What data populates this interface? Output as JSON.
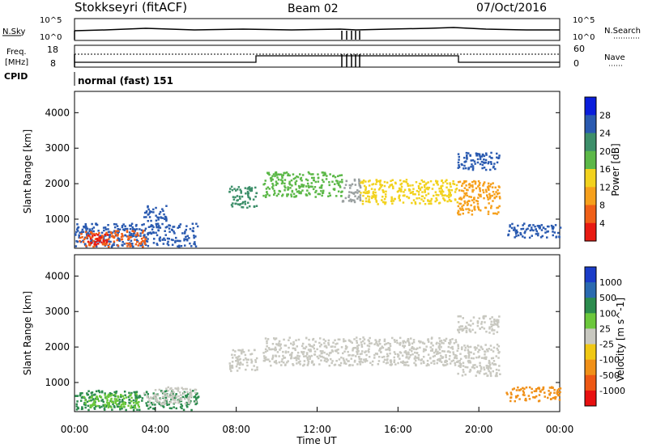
{
  "header": {
    "station": "Stokkseyri (fitACF)",
    "beam": "Beam 02",
    "date": "07/Oct/2016"
  },
  "sky_panel": {
    "left_label": "N.Sky",
    "right_label": "N.Search",
    "left_ticks": [
      "10^5",
      "10^0"
    ],
    "right_ticks": [
      "10^5",
      "10^0"
    ]
  },
  "freq_panel": {
    "left_label_line1": "Freq.",
    "left_label_line2": "[MHz]",
    "left_ticks": [
      "18",
      "8"
    ],
    "right_label": "Nave",
    "right_ticks": [
      "60",
      "0"
    ]
  },
  "cpid": {
    "label": "CPID",
    "value": "normal (fast) 151"
  },
  "chart_data": [
    {
      "type": "heatmap",
      "name": "power",
      "ylabel": "Slant Range [km]",
      "yticks": [
        "1000",
        "2000",
        "3000",
        "4000"
      ],
      "ylim": [
        180,
        4600
      ],
      "colorbar_label": "Power [dB]",
      "colorbar_ticks": [
        "4",
        "8",
        "12",
        "16",
        "20",
        "24",
        "28"
      ],
      "colorbar_colors": [
        "#0a1edc",
        "#2a5ab0",
        "#3d8f6a",
        "#5cb848",
        "#f2d21e",
        "#f6a01c",
        "#f06018",
        "#e81a12"
      ],
      "blobs": [
        {
          "x0": 0.0,
          "x1": 6.1,
          "y0": 250,
          "y1": 900,
          "color": "#2a5ab0"
        },
        {
          "x0": 0.2,
          "x1": 3.5,
          "y0": 250,
          "y1": 700,
          "color": "#f06018"
        },
        {
          "x0": 0.6,
          "x1": 1.6,
          "y0": 300,
          "y1": 600,
          "color": "#e81a12"
        },
        {
          "x0": 3.4,
          "x1": 4.5,
          "y0": 950,
          "y1": 1400,
          "color": "#2a5ab0"
        },
        {
          "x0": 7.6,
          "x1": 9.0,
          "y0": 1350,
          "y1": 1950,
          "color": "#3d8f6a"
        },
        {
          "x0": 9.3,
          "x1": 13.2,
          "y0": 1650,
          "y1": 2350,
          "color": "#5cb848"
        },
        {
          "x0": 13.2,
          "x1": 14.1,
          "y0": 1500,
          "y1": 2150,
          "color": "#9aa0a0"
        },
        {
          "x0": 14.1,
          "x1": 18.9,
          "y0": 1450,
          "y1": 2150,
          "color": "#f2d21e"
        },
        {
          "x0": 18.9,
          "x1": 21.0,
          "y0": 1150,
          "y1": 2100,
          "color": "#f6a01c"
        },
        {
          "x0": 21.3,
          "x1": 24.0,
          "y0": 500,
          "y1": 900,
          "color": "#2a5ab0"
        },
        {
          "x0": 18.9,
          "x1": 21.0,
          "y0": 2400,
          "y1": 2900,
          "color": "#2a5ab0"
        }
      ]
    },
    {
      "type": "heatmap",
      "name": "velocity",
      "xlabel": "Time UT",
      "xticks": [
        "00:00",
        "04:00",
        "08:00",
        "12:00",
        "16:00",
        "20:00",
        "00:00"
      ],
      "xlim": [
        0,
        24
      ],
      "ylabel": "Slant Range [km]",
      "yticks": [
        "1000",
        "2000",
        "3000",
        "4000"
      ],
      "ylim": [
        180,
        4600
      ],
      "colorbar_label": "Velocity [m s^-1]",
      "colorbar_ticks": [
        "1000",
        "500",
        "100",
        "25",
        "-25",
        "-100",
        "-500",
        "-1000"
      ],
      "colorbar_colors": [
        "#1a3cc8",
        "#2a6ab0",
        "#2c8c4e",
        "#6cc83c",
        "#c8c8c0",
        "#f0c814",
        "#f09018",
        "#ee5814",
        "#e81010"
      ],
      "blobs": [
        {
          "x0": 0.0,
          "x1": 6.1,
          "y0": 250,
          "y1": 800,
          "color": "#2c8c4e"
        },
        {
          "x0": 0.4,
          "x1": 3.2,
          "y0": 300,
          "y1": 700,
          "color": "#6cc83c"
        },
        {
          "x0": 3.4,
          "x1": 6.0,
          "y0": 400,
          "y1": 900,
          "color": "#c8c8c0"
        },
        {
          "x0": 7.6,
          "x1": 9.0,
          "y0": 1350,
          "y1": 1950,
          "color": "#c8c8c0"
        },
        {
          "x0": 9.3,
          "x1": 18.9,
          "y0": 1500,
          "y1": 2300,
          "color": "#c8c8c0"
        },
        {
          "x0": 18.9,
          "x1": 21.0,
          "y0": 1200,
          "y1": 2100,
          "color": "#c8c8c0"
        },
        {
          "x0": 21.3,
          "x1": 24.0,
          "y0": 500,
          "y1": 900,
          "color": "#f09018"
        },
        {
          "x0": 18.9,
          "x1": 21.0,
          "y0": 2400,
          "y1": 2900,
          "color": "#c8c8c0"
        }
      ]
    }
  ]
}
